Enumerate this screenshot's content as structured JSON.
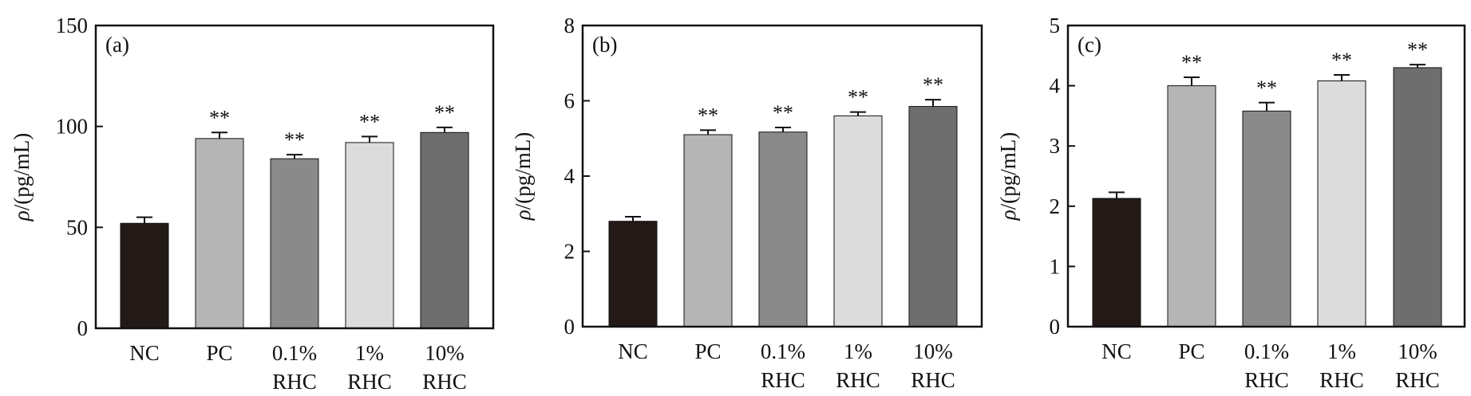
{
  "chart_data": [
    {
      "type": "bar",
      "panel_label": "(a)",
      "categories": [
        [
          "NC"
        ],
        [
          "PC"
        ],
        [
          "0.1%",
          "RHC"
        ],
        [
          "1%",
          "RHC"
        ],
        [
          "10%",
          "RHC"
        ]
      ],
      "values": [
        52,
        94,
        84,
        92,
        97
      ],
      "errors": [
        3,
        3,
        2,
        3,
        2.5
      ],
      "significance": [
        "",
        "**",
        "**",
        "**",
        "**"
      ],
      "colors": [
        "#231916",
        "#b5b5b5",
        "#8a8a8a",
        "#dcdcdc",
        "#6e6e6e"
      ],
      "ylabel_symbol": "ρ",
      "ylabel_unit": "/(pg/mL)",
      "ylim": [
        0,
        150
      ],
      "yticks": [
        0,
        50,
        100,
        150
      ],
      "grid": false
    },
    {
      "type": "bar",
      "panel_label": "(b)",
      "categories": [
        [
          "NC"
        ],
        [
          "PC"
        ],
        [
          "0.1%",
          "RHC"
        ],
        [
          "1%",
          "RHC"
        ],
        [
          "10%",
          "RHC"
        ]
      ],
      "values": [
        2.8,
        5.1,
        5.17,
        5.6,
        5.85
      ],
      "errors": [
        0.12,
        0.12,
        0.12,
        0.1,
        0.18
      ],
      "significance": [
        "",
        "**",
        "**",
        "**",
        "**"
      ],
      "colors": [
        "#231916",
        "#b5b5b5",
        "#8a8a8a",
        "#dcdcdc",
        "#6e6e6e"
      ],
      "ylabel_symbol": "ρ",
      "ylabel_unit": "/(pg/mL)",
      "ylim": [
        0,
        8
      ],
      "yticks": [
        0,
        2,
        4,
        6,
        8
      ],
      "grid": false
    },
    {
      "type": "bar",
      "panel_label": "(c)",
      "categories": [
        [
          "NC"
        ],
        [
          "PC"
        ],
        [
          "0.1%",
          "RHC"
        ],
        [
          "1%",
          "RHC"
        ],
        [
          "10%",
          "RHC"
        ]
      ],
      "values": [
        2.13,
        4.0,
        3.58,
        4.08,
        4.3
      ],
      "errors": [
        0.1,
        0.14,
        0.14,
        0.1,
        0.05
      ],
      "significance": [
        "",
        "**",
        "**",
        "**",
        "**"
      ],
      "colors": [
        "#231916",
        "#b5b5b5",
        "#8a8a8a",
        "#dcdcdc",
        "#6e6e6e"
      ],
      "ylabel_symbol": "ρ",
      "ylabel_unit": "/(pg/mL)",
      "ylim": [
        0,
        5
      ],
      "yticks": [
        0,
        1,
        2,
        3,
        4,
        5
      ],
      "grid": false
    }
  ]
}
